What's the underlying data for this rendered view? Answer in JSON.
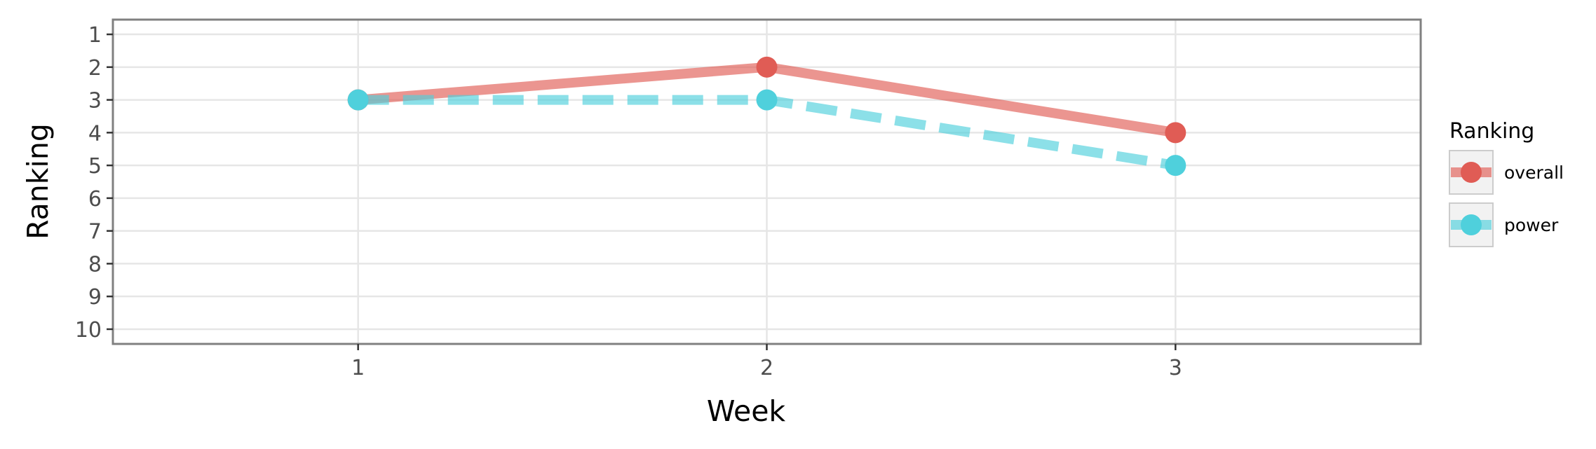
{
  "chart_data": {
    "type": "line",
    "xlabel": "Week",
    "ylabel": "Ranking",
    "x": [
      1,
      2,
      3
    ],
    "x_ticks": [
      "1",
      "2",
      "3"
    ],
    "xlim": [
      0.4,
      3.6
    ],
    "y_ticks": [
      "1",
      "2",
      "3",
      "4",
      "5",
      "6",
      "7",
      "8",
      "9",
      "10"
    ],
    "ylim": [
      10.45,
      0.55
    ],
    "y_reversed": true,
    "grid": true,
    "legend": {
      "title": "Ranking",
      "placement": "right"
    },
    "series": [
      {
        "name": "overall",
        "values": [
          3,
          2,
          4
        ],
        "color": "#e05c55",
        "line_style": "solid"
      },
      {
        "name": "power",
        "values": [
          3,
          3,
          5
        ],
        "color": "#4fd0dc",
        "line_style": "dashed"
      }
    ]
  }
}
